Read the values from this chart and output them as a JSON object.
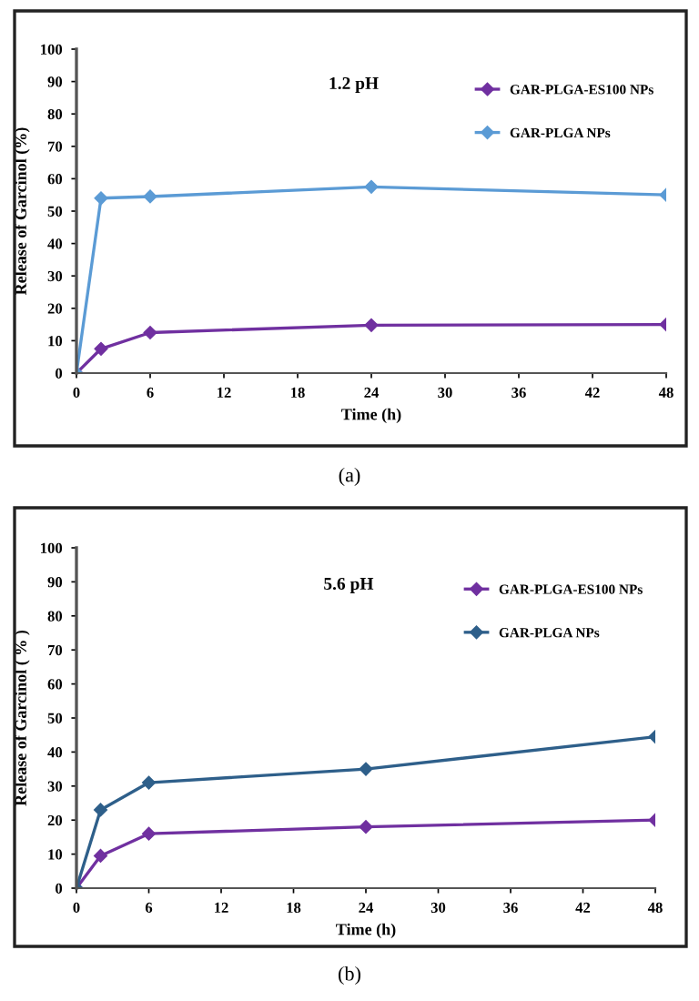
{
  "chart_data": [
    {
      "type": "line",
      "title": "1.2 pH",
      "xlabel": "Time (h)",
      "ylabel": "Release of Garcinol (%)",
      "annotations": [
        "(a)"
      ],
      "x": [
        0,
        2,
        6,
        24,
        48
      ],
      "series": [
        {
          "name": "GAR-PLGA-ES100 NPs",
          "color": "#7030a0",
          "values": [
            0,
            7.5,
            12.5,
            14.8,
            15
          ]
        },
        {
          "name": "GAR-PLGA NPs",
          "color": "#5b9bd5",
          "values": [
            0,
            54,
            54.5,
            57.5,
            55
          ]
        }
      ],
      "xlim": [
        0,
        48
      ],
      "xticks": [
        0,
        6,
        12,
        18,
        24,
        30,
        36,
        42,
        48
      ],
      "ylim": [
        0,
        100
      ],
      "yticks": [
        0,
        10,
        20,
        30,
        40,
        50,
        60,
        70,
        80,
        90,
        100
      ],
      "grid": false,
      "legend": "top right",
      "marker": "diamond",
      "line_style": "solid"
    },
    {
      "type": "line",
      "title": "5.6 pH",
      "xlabel": "Time (h)",
      "ylabel": "Release of Garcinol ( % )",
      "annotations": [
        "(b)"
      ],
      "x": [
        0,
        2,
        6,
        24,
        48
      ],
      "series": [
        {
          "name": "GAR-PLGA-ES100 NPs",
          "color": "#7030a0",
          "values": [
            0,
            9.5,
            16,
            18,
            20
          ]
        },
        {
          "name": "GAR-PLGA NPs",
          "color": "#2e5f8a",
          "values": [
            0,
            23,
            31,
            35,
            44.5
          ]
        }
      ],
      "xlim": [
        0,
        48
      ],
      "xticks": [
        0,
        6,
        12,
        18,
        24,
        30,
        36,
        42,
        48
      ],
      "ylim": [
        0,
        100
      ],
      "yticks": [
        0,
        10,
        20,
        30,
        40,
        50,
        60,
        70,
        80,
        90,
        100
      ],
      "grid": false,
      "legend": "top right",
      "marker": "diamond",
      "line_style": "solid"
    }
  ]
}
